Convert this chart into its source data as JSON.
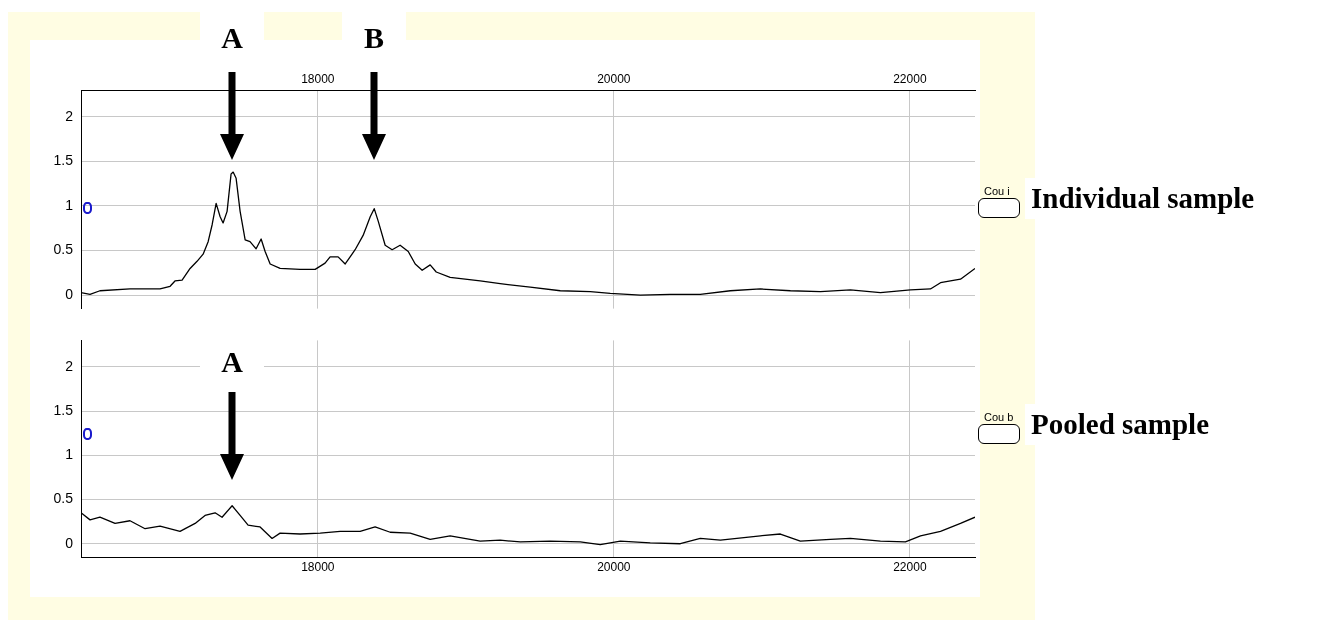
{
  "chart_data": [
    {
      "type": "line",
      "x": [
        16400,
        16461,
        16528,
        16731,
        16934,
        17002,
        17035,
        17083,
        17137,
        17184,
        17225,
        17259,
        17286,
        17313,
        17340,
        17360,
        17387,
        17414,
        17428,
        17448,
        17475,
        17509,
        17542,
        17583,
        17617,
        17644,
        17678,
        17745,
        17880,
        17982,
        18049,
        18083,
        18137,
        18185,
        18252,
        18306,
        18354,
        18381,
        18408,
        18455,
        18502,
        18556,
        18611,
        18658,
        18705,
        18759,
        18800,
        18894,
        19097,
        19232,
        19435,
        19638,
        19841,
        19976,
        20179,
        20382,
        20584,
        20787,
        20990,
        21193,
        21396,
        21598,
        21801,
        22004,
        22139,
        22207,
        22274,
        22342,
        22440
      ],
      "series": [
        {
          "color": "#000000",
          "values": [
            0.03,
            0.01,
            0.05,
            0.07,
            0.07,
            0.1,
            0.16,
            0.17,
            0.3,
            0.38,
            0.46,
            0.6,
            0.79,
            1.03,
            0.88,
            0.81,
            0.94,
            1.36,
            1.38,
            1.31,
            0.94,
            0.62,
            0.6,
            0.52,
            0.63,
            0.49,
            0.35,
            0.3,
            0.29,
            0.29,
            0.36,
            0.43,
            0.43,
            0.35,
            0.51,
            0.67,
            0.88,
            0.97,
            0.83,
            0.56,
            0.51,
            0.56,
            0.49,
            0.35,
            0.28,
            0.34,
            0.26,
            0.2,
            0.16,
            0.13,
            0.09,
            0.05,
            0.04,
            0.02,
            0.0,
            0.01,
            0.01,
            0.05,
            0.07,
            0.05,
            0.04,
            0.06,
            0.03,
            0.06,
            0.07,
            0.14,
            0.16,
            0.18,
            0.3
          ]
        }
      ],
      "xlim": [
        16400,
        22440
      ],
      "xticks": [
        18000,
        20000,
        22000
      ],
      "ylim": [
        -0.15,
        2.3
      ],
      "yticks": [
        0,
        0.5,
        1,
        1.5,
        2
      ],
      "grid": true,
      "legend": false,
      "marker": "none",
      "line_style": "solid",
      "annotations": [
        "Cou i",
        "Individual sample",
        "A",
        "B"
      ]
    },
    {
      "type": "line",
      "x": [
        16400,
        16461,
        16528,
        16630,
        16731,
        16833,
        16934,
        17069,
        17171,
        17238,
        17306,
        17353,
        17421,
        17475,
        17529,
        17610,
        17691,
        17745,
        17880,
        18016,
        18151,
        18286,
        18387,
        18489,
        18624,
        18759,
        18894,
        19097,
        19232,
        19368,
        19570,
        19773,
        19908,
        20044,
        20246,
        20449,
        20584,
        20720,
        20990,
        21125,
        21260,
        21463,
        21598,
        21801,
        21970,
        22072,
        22207,
        22342,
        22440
      ],
      "series": [
        {
          "color": "#000000",
          "values": [
            0.35,
            0.27,
            0.3,
            0.23,
            0.26,
            0.17,
            0.2,
            0.14,
            0.23,
            0.32,
            0.35,
            0.3,
            0.43,
            0.32,
            0.21,
            0.19,
            0.06,
            0.12,
            0.11,
            0.12,
            0.14,
            0.14,
            0.19,
            0.13,
            0.12,
            0.05,
            0.09,
            0.03,
            0.04,
            0.02,
            0.03,
            0.02,
            -0.01,
            0.03,
            0.01,
            0.0,
            0.06,
            0.04,
            0.09,
            0.11,
            0.03,
            0.05,
            0.06,
            0.03,
            0.02,
            0.09,
            0.14,
            0.23,
            0.3
          ]
        }
      ],
      "xlim": [
        16400,
        22440
      ],
      "xticks": [
        18000,
        20000,
        22000
      ],
      "ylim": [
        -0.15,
        2.3
      ],
      "yticks": [
        0,
        0.5,
        1,
        1.5,
        2
      ],
      "grid": true,
      "legend": false,
      "marker": "none",
      "line_style": "solid",
      "annotations": [
        "Cou b",
        "Pooled sample",
        "A"
      ]
    }
  ]
}
